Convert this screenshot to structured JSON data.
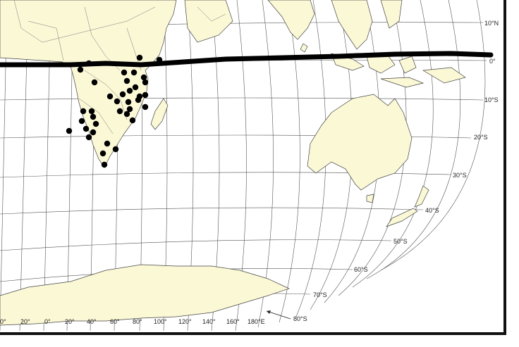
{
  "map": {
    "title": "",
    "colors": {
      "land": "#fbf8d6",
      "ocean": "#ffffff",
      "grid": "#555555",
      "marker": "#000000",
      "equator_line": "#000000"
    },
    "latitude_labels": [
      "10°N",
      "0°",
      "10°S",
      "20°S",
      "30°S",
      "40°S",
      "50°S",
      "60°S",
      "70°S",
      "80°S"
    ],
    "longitude_labels": [
      "0°",
      "20°",
      "0°",
      "20°",
      "40°",
      "60°",
      "80°",
      "100°",
      "120°",
      "140°",
      "160°",
      "180°E"
    ],
    "regions": [
      "Africa",
      "Madagascar",
      "Arabian Peninsula",
      "India",
      "Southeast Asia",
      "Australia",
      "New Zealand",
      "Antarctica"
    ],
    "markers": {
      "count": 44,
      "description": "occurrence points in eastern and southern Africa"
    },
    "hand_drawn_line": "equator"
  }
}
